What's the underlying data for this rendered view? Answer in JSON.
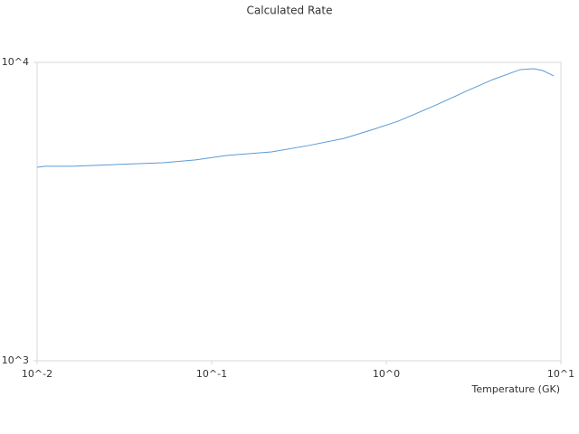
{
  "chart_data": {
    "type": "line",
    "title": "Calculated Rate",
    "x_label": "Temperature (GK)",
    "log_x": true,
    "log_y": true,
    "xlim": [
      0.01,
      10
    ],
    "ylim": [
      1000,
      10000
    ],
    "xticks": [
      {
        "value": 0.01,
        "label": "10^-2"
      },
      {
        "value": 0.1,
        "label": "10^-1"
      },
      {
        "value": 1,
        "label": "10^0"
      },
      {
        "value": 10,
        "label": "10^1"
      }
    ],
    "yticks": [
      {
        "value": 1000,
        "label": "10^3"
      },
      {
        "value": 10000,
        "label": "10^4"
      }
    ],
    "x": [
      0.01,
      0.0111,
      0.0159,
      0.0289,
      0.0525,
      0.0807,
      0.121,
      0.22,
      0.356,
      0.571,
      0.818,
      1.167,
      1.88,
      2.86,
      4.08,
      5.85,
      7.0,
      7.87,
      9.1
    ],
    "series": [
      {
        "color": "#5b9bd5",
        "values": [
          4450,
          4485,
          4485,
          4548,
          4610,
          4710,
          4875,
          5010,
          5260,
          5560,
          5930,
          6350,
          7150,
          8000,
          8760,
          9460,
          9520,
          9390,
          9010
        ]
      }
    ]
  }
}
